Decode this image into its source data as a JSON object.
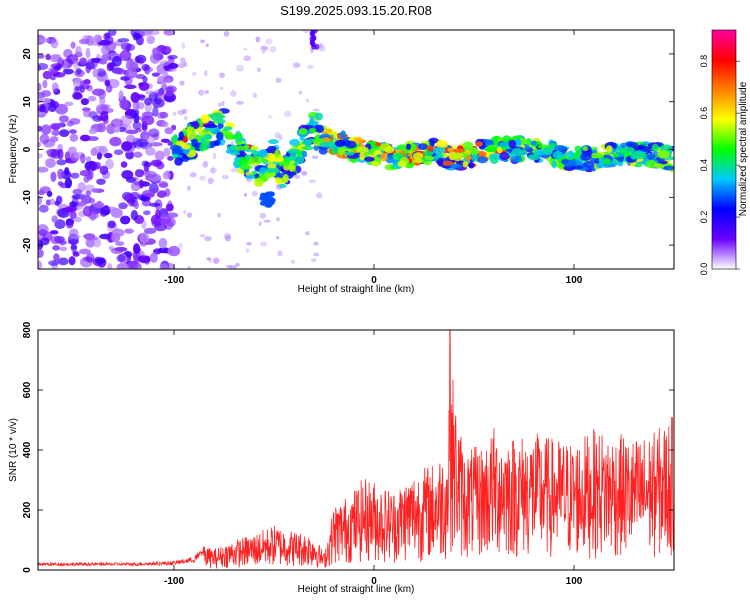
{
  "title": "S199.2025.093.15.20.R08",
  "chart_data": [
    {
      "type": "heatmap",
      "xlabel": "Height of straight line (km)",
      "ylabel": "Frequency (Hz)",
      "xlim": [
        -168,
        150
      ],
      "ylim": [
        -25,
        25
      ],
      "xticks": [
        -100,
        0,
        100
      ],
      "yticks": [
        -20,
        -10,
        0,
        10,
        20
      ],
      "colorbar": {
        "label": "Normalized spectral amplitude",
        "range": [
          0.0,
          0.92
        ],
        "ticks": [
          "0.0",
          "0.2",
          "0.4",
          "0.6",
          "0.8"
        ],
        "tick_values": [
          0.0,
          0.2,
          0.4,
          0.6,
          0.8
        ],
        "colors": [
          "#ffffff",
          "#6a00ff",
          "#0000ff",
          "#00c8ff",
          "#00ff00",
          "#ffff00",
          "#ff8000",
          "#ff0000",
          "#ff00a0"
        ]
      },
      "ridge": {
        "x": [
          -100,
          -90,
          -80,
          -75,
          -70,
          -65,
          -60,
          -55,
          -50,
          -45,
          -40,
          -35,
          -30,
          -25,
          -20,
          -15,
          -10,
          -5,
          0,
          5,
          10,
          20,
          30,
          40,
          50,
          60,
          70,
          80,
          90,
          100,
          110,
          120,
          130,
          140,
          150
        ],
        "y": [
          -1,
          2,
          4,
          5,
          1,
          -2,
          -3,
          -4,
          -1,
          -5,
          -2,
          2,
          4,
          3,
          1,
          1,
          0,
          0,
          -1,
          -1,
          -2,
          -1,
          0,
          -2,
          -1,
          0,
          0,
          0,
          -1,
          -2,
          -2,
          -1,
          -1,
          -1,
          -2
        ]
      }
    },
    {
      "type": "line",
      "xlabel": "Height of straight line (km)",
      "ylabel": "SNR (10 * v/v)",
      "xlim": [
        -168,
        150
      ],
      "ylim": [
        0,
        800
      ],
      "xticks": [
        -100,
        0,
        100
      ],
      "yticks": [
        0,
        200,
        400,
        600,
        800
      ],
      "color": "#ff2020",
      "envelope": {
        "x": [
          -168,
          -120,
          -100,
          -90,
          -85,
          -80,
          -70,
          -60,
          -50,
          -40,
          -30,
          -25,
          -20,
          -15,
          -10,
          -5,
          0,
          5,
          10,
          20,
          30,
          37,
          38,
          40,
          45,
          55,
          60,
          70,
          80,
          90,
          100,
          110,
          120,
          130,
          140,
          150
        ],
        "y": [
          25,
          25,
          30,
          45,
          80,
          70,
          100,
          120,
          150,
          130,
          120,
          55,
          220,
          240,
          270,
          310,
          300,
          280,
          270,
          330,
          360,
          420,
          800,
          600,
          400,
          420,
          480,
          450,
          460,
          440,
          430,
          470,
          460,
          440,
          460,
          520
        ]
      },
      "peak": {
        "x": 38,
        "y": 800
      }
    }
  ]
}
